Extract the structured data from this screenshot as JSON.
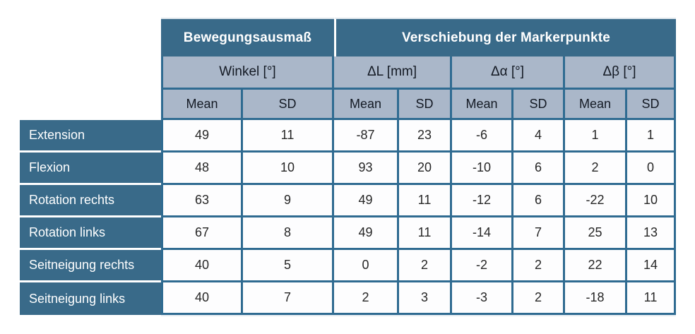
{
  "colors": {
    "header_dark": "#396a89",
    "header_light": "#aab7c9",
    "border": "#2f6b91",
    "cell_bg": "#fdfdfe"
  },
  "chart_data": {
    "type": "table",
    "title": "",
    "group_headers": [
      "Bewegungsausmaß",
      "Verschiebung der Markerpunkte"
    ],
    "unit_headers": [
      "Winkel [°]",
      "ΔL [mm]",
      "Δα [°]",
      "Δβ [°]"
    ],
    "stat_headers": [
      "Mean",
      "SD",
      "Mean",
      "SD",
      "Mean",
      "SD",
      "Mean",
      "SD"
    ],
    "rows": [
      {
        "label": "Extension",
        "values": [
          49,
          11,
          -87,
          23,
          -6,
          4,
          1,
          1
        ]
      },
      {
        "label": "Flexion",
        "values": [
          48,
          10,
          93,
          20,
          -10,
          6,
          2,
          0
        ]
      },
      {
        "label": "Rotation rechts",
        "values": [
          63,
          9,
          49,
          11,
          -12,
          6,
          -22,
          10
        ]
      },
      {
        "label": "Rotation links",
        "values": [
          67,
          8,
          49,
          11,
          -14,
          7,
          25,
          13
        ]
      },
      {
        "label": "Seitneigung rechts",
        "values": [
          40,
          5,
          0,
          2,
          -2,
          2,
          22,
          14
        ]
      },
      {
        "label": "Seitneigung links",
        "values": [
          40,
          7,
          2,
          3,
          -3,
          2,
          -18,
          11
        ]
      }
    ]
  }
}
